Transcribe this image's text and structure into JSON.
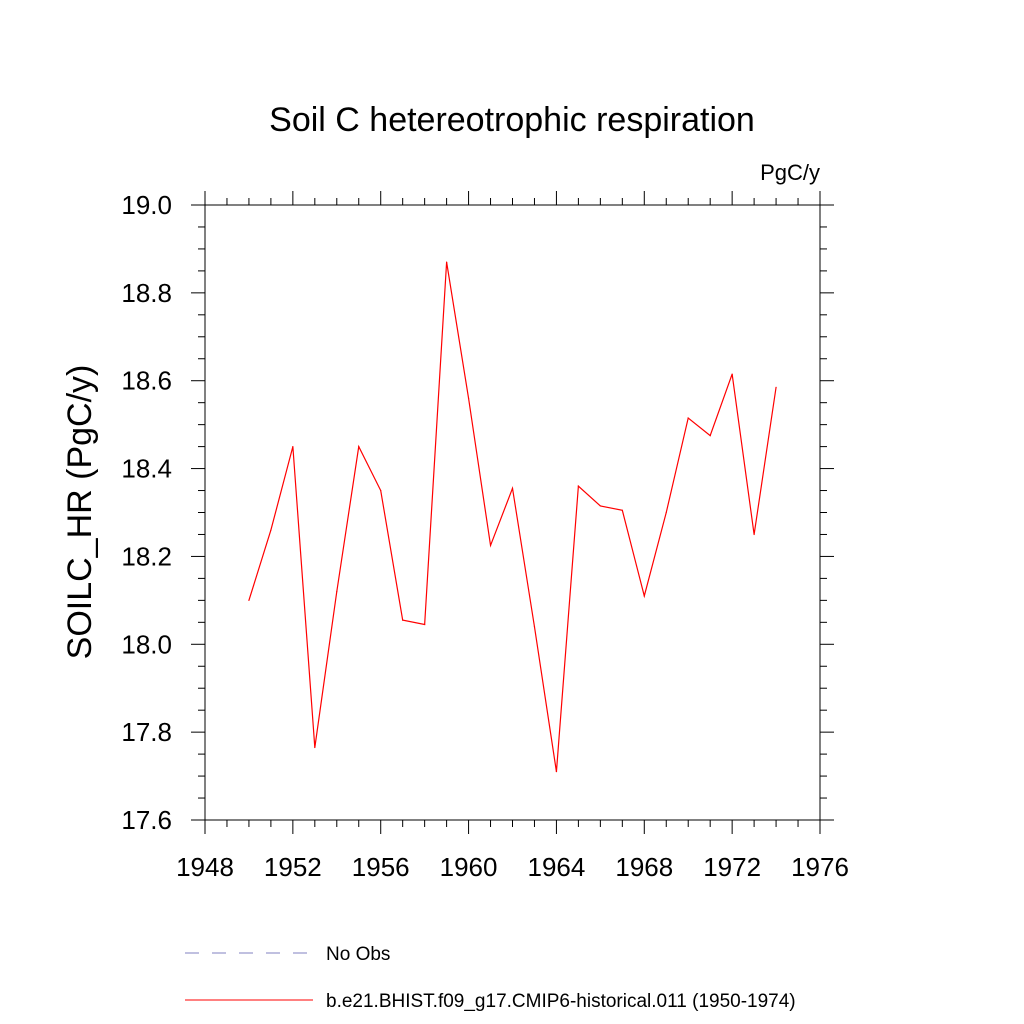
{
  "chart_data": {
    "type": "line",
    "title": "Soil C hetereotrophic respiration",
    "units": "PgC/y",
    "xlabel": "",
    "ylabel": "SOILC_HR  (PgC/y)",
    "xlim": [
      1948,
      1976
    ],
    "ylim": [
      17.6,
      19.0
    ],
    "x_ticks": [
      "1948",
      "1952",
      "1956",
      "1960",
      "1964",
      "1968",
      "1972",
      "1976"
    ],
    "y_ticks": [
      "17.6",
      "17.8",
      "18.0",
      "18.2",
      "18.4",
      "18.6",
      "18.8",
      "19.0"
    ],
    "grid": false,
    "legend_position": "bottom",
    "legend": [
      {
        "label": "No Obs",
        "style": "dashed",
        "color": "#8080c0"
      },
      {
        "label": "b.e21.BHIST.f09_g17.CMIP6-historical.011 (1950-1974)",
        "style": "solid",
        "color": "#ff0000"
      }
    ],
    "series": [
      {
        "name": "b.e21.BHIST.f09_g17.CMIP6-historical.011 (1950-1974)",
        "color": "#ff0000",
        "x": [
          1950,
          1951,
          1952,
          1953,
          1954,
          1955,
          1956,
          1957,
          1958,
          1959,
          1960,
          1961,
          1962,
          1963,
          1964,
          1965,
          1966,
          1967,
          1968,
          1969,
          1970,
          1971,
          1972,
          1973,
          1974
        ],
        "y": [
          18.1,
          18.26,
          18.45,
          17.765,
          18.12,
          18.45,
          18.35,
          18.055,
          18.045,
          18.87,
          18.56,
          18.225,
          18.355,
          18.04,
          17.71,
          18.36,
          18.315,
          18.305,
          18.11,
          18.3,
          18.515,
          18.475,
          18.615,
          18.25,
          18.585
        ]
      }
    ]
  }
}
